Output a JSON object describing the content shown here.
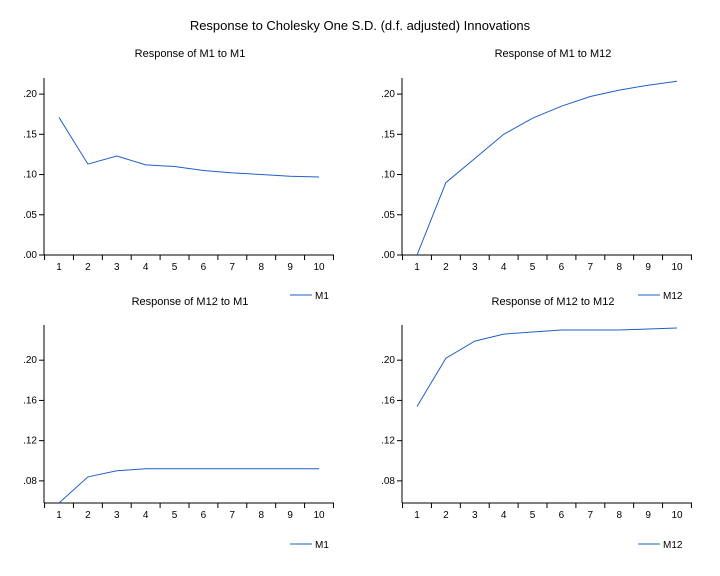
{
  "title": "Response to Cholesky One S.D. (d.f. adjusted) Innovations",
  "chart_data": [
    {
      "type": "line",
      "title": "Response of M1 to M1",
      "categories": [
        "1",
        "2",
        "3",
        "4",
        "5",
        "6",
        "7",
        "8",
        "9",
        "10"
      ],
      "series": [
        {
          "name": "M1",
          "values": [
            0.171,
            0.113,
            0.123,
            0.112,
            0.11,
            0.105,
            0.102,
            0.1,
            0.098,
            0.097
          ]
        }
      ],
      "ylim": [
        0.0,
        0.22
      ],
      "yticks": [
        0.0,
        0.05,
        0.1,
        0.15,
        0.2
      ],
      "ytick_labels": [
        ".00",
        ".05",
        ".10",
        ".15",
        ".20"
      ],
      "legend_label": "M1",
      "line_color": "#1f5fc8"
    },
    {
      "type": "line",
      "title": "Response of M1 to M12",
      "categories": [
        "1",
        "2",
        "3",
        "4",
        "5",
        "6",
        "7",
        "8",
        "9",
        "10"
      ],
      "series": [
        {
          "name": "M12",
          "values": [
            0.0,
            0.09,
            0.12,
            0.15,
            0.17,
            0.185,
            0.197,
            0.205,
            0.211,
            0.216
          ]
        }
      ],
      "ylim": [
        0.0,
        0.22
      ],
      "yticks": [
        0.0,
        0.05,
        0.1,
        0.15,
        0.2
      ],
      "ytick_labels": [
        ".00",
        ".05",
        ".10",
        ".15",
        ".20"
      ],
      "legend_label": "M12",
      "line_color": "#1f5fc8"
    },
    {
      "type": "line",
      "title": "Response of M12 to M1",
      "categories": [
        "1",
        "2",
        "3",
        "4",
        "5",
        "6",
        "7",
        "8",
        "9",
        "10"
      ],
      "series": [
        {
          "name": "M1",
          "values": [
            0.058,
            0.084,
            0.09,
            0.092,
            0.092,
            0.092,
            0.092,
            0.092,
            0.092,
            0.092
          ]
        }
      ],
      "ylim": [
        0.058,
        0.235
      ],
      "yticks": [
        0.08,
        0.12,
        0.16,
        0.2
      ],
      "ytick_labels": [
        ".08",
        ".12",
        ".16",
        ".20"
      ],
      "legend_label": "M1",
      "line_color": "#1f5fc8"
    },
    {
      "type": "line",
      "title": "Response of M12 to M12",
      "categories": [
        "1",
        "2",
        "3",
        "4",
        "5",
        "6",
        "7",
        "8",
        "9",
        "10"
      ],
      "series": [
        {
          "name": "M12",
          "values": [
            0.154,
            0.202,
            0.219,
            0.226,
            0.228,
            0.23,
            0.23,
            0.23,
            0.231,
            0.232
          ]
        }
      ],
      "ylim": [
        0.058,
        0.235
      ],
      "yticks": [
        0.08,
        0.12,
        0.16,
        0.2
      ],
      "ytick_labels": [
        ".08",
        ".12",
        ".16",
        ".20"
      ],
      "legend_label": "M12",
      "line_color": "#1f5fc8"
    }
  ]
}
